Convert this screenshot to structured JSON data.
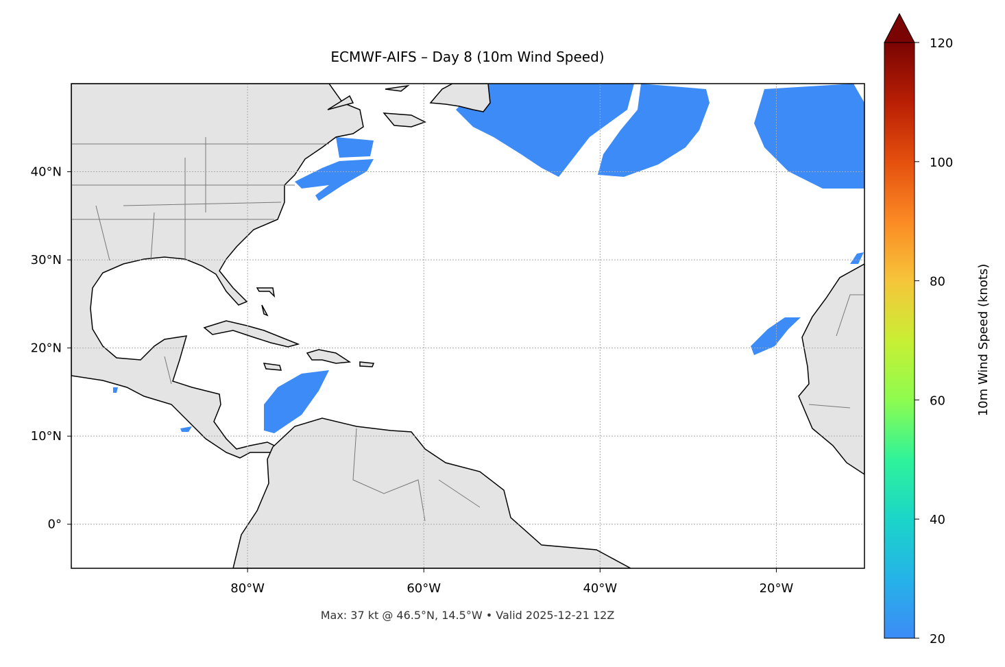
{
  "map": {
    "title": "ECMWF-AIFS – Day 8 (10m Wind Speed)",
    "footer": "Max: 37 kt @ 46.5°N, 14.5°W • Valid 2025-12-21 12Z",
    "lon_range": [
      -100,
      -10
    ],
    "lat_range": [
      -5,
      50
    ],
    "lon_ticks": [
      {
        "value": -80,
        "label": "80°W"
      },
      {
        "value": -60,
        "label": "60°W"
      },
      {
        "value": -40,
        "label": "40°W"
      },
      {
        "value": -20,
        "label": "20°W"
      }
    ],
    "lat_ticks": [
      {
        "value": 0,
        "label": "0°"
      },
      {
        "value": 10,
        "label": "10°N"
      },
      {
        "value": 20,
        "label": "20°N"
      },
      {
        "value": 30,
        "label": "30°N"
      },
      {
        "value": 40,
        "label": "40°N"
      }
    ]
  },
  "colorbar": {
    "label": "10m Wind Speed (knots)",
    "range": [
      20,
      120
    ],
    "ticks": [
      20,
      40,
      60,
      80,
      100,
      120
    ]
  }
}
